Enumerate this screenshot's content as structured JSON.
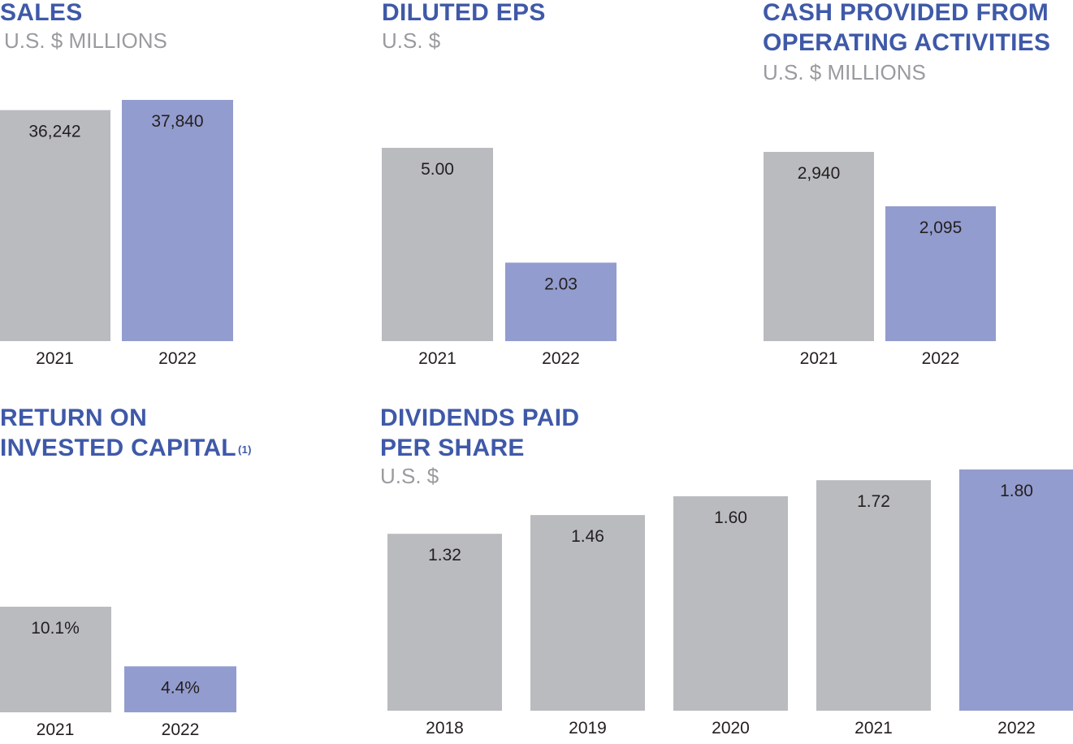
{
  "colors": {
    "title": "#3f59a8",
    "subtitle": "#9a9b9f",
    "bar_prior": "#b9bbbf",
    "bar_current": "#939cce",
    "label": "#231f20"
  },
  "chart_data": [
    {
      "id": "sales",
      "type": "bar",
      "title": "SALES",
      "subtitle": "U.S. $ MILLIONS",
      "categories": [
        "2021",
        "2022"
      ],
      "values": [
        36242,
        37840
      ],
      "labels": [
        "36,242",
        "37,840"
      ],
      "highlight_last": true
    },
    {
      "id": "eps",
      "type": "bar",
      "title": "DILUTED EPS",
      "subtitle": "U.S. $",
      "categories": [
        "2021",
        "2022"
      ],
      "values": [
        5.0,
        2.03
      ],
      "labels": [
        "5.00",
        "2.03"
      ],
      "highlight_last": true
    },
    {
      "id": "cash",
      "type": "bar",
      "title": "CASH PROVIDED FROM OPERATING ACTIVITIES",
      "title_lines": [
        "CASH PROVIDED FROM",
        "OPERATING ACTIVITIES"
      ],
      "subtitle": "U.S. $ MILLIONS",
      "categories": [
        "2021",
        "2022"
      ],
      "values": [
        2940,
        2095
      ],
      "labels": [
        "2,940",
        "2,095"
      ],
      "highlight_last": true
    },
    {
      "id": "roic",
      "type": "bar",
      "title": "RETURN ON INVESTED CAPITAL",
      "title_lines": [
        "RETURN ON",
        "INVESTED CAPITAL"
      ],
      "title_footnote": "(1)",
      "subtitle": "",
      "categories": [
        "2021",
        "2022"
      ],
      "values": [
        10.1,
        4.4
      ],
      "labels": [
        "10.1%",
        "4.4%"
      ],
      "highlight_last": true
    },
    {
      "id": "dividends",
      "type": "bar",
      "title": "DIVIDENDS PAID PER SHARE",
      "title_lines": [
        "DIVIDENDS PAID",
        "PER SHARE"
      ],
      "subtitle": "U.S. $",
      "categories": [
        "2018",
        "2019",
        "2020",
        "2021",
        "2022"
      ],
      "values": [
        1.32,
        1.46,
        1.6,
        1.72,
        1.8
      ],
      "labels": [
        "1.32",
        "1.46",
        "1.60",
        "1.72",
        "1.80"
      ],
      "highlight_last": true
    }
  ]
}
